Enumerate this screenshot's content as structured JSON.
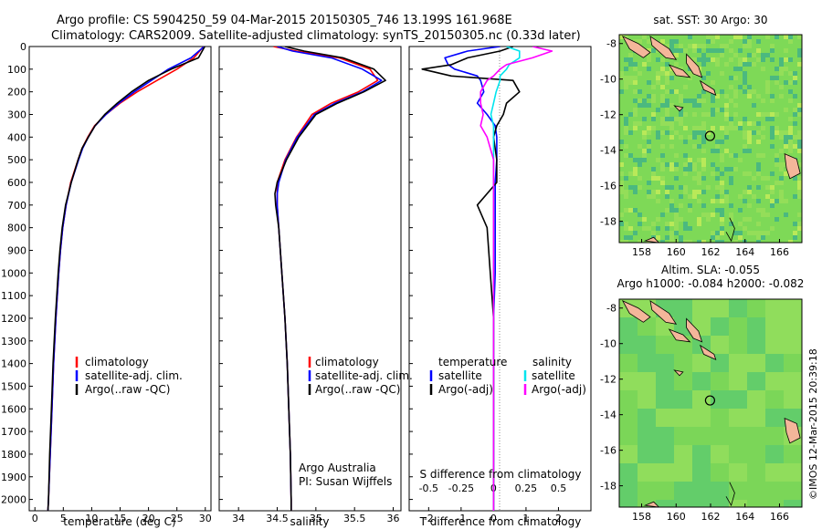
{
  "header": {
    "line1": "Argo profile: CS 5904250_59 04-Mar-2015 20150305_746 13.199S 161.968E",
    "line2": "Climatology: CARS2009. Satellite-adjusted climatology: synTS_20150305.nc (0.33d later)"
  },
  "colors": {
    "climatology": "#ff0000",
    "satellite": "#0000ff",
    "argo": "#000000",
    "sat_salinity": "#00e5ee",
    "argo_salinity": "#ff00ff",
    "map_green": "#7ed957",
    "land": "#f4b69a"
  },
  "chart_data": [
    {
      "type": "line",
      "name": "temperature-panel",
      "xlabel": "temperature (deg C)",
      "xlim": [
        -1,
        31
      ],
      "xticks": [
        "0",
        "5",
        "10",
        "15",
        "20",
        "25",
        "30"
      ],
      "ylim": [
        0,
        2050
      ],
      "yticks": [
        "0",
        "100",
        "200",
        "300",
        "400",
        "500",
        "600",
        "700",
        "800",
        "900",
        "1000",
        "1100",
        "1200",
        "1300",
        "1400",
        "1500",
        "1600",
        "1700",
        "1800",
        "1900",
        "2000"
      ],
      "legend": [
        "climatology",
        "satellite-adj. clim.",
        "Argo(..raw -QC)"
      ],
      "depth": [
        0,
        50,
        100,
        150,
        200,
        250,
        300,
        350,
        400,
        450,
        500,
        600,
        700,
        800,
        900,
        1000,
        1200,
        1400,
        1600,
        1800,
        2000,
        2050
      ],
      "series": [
        {
          "name": "climatology",
          "values": [
            29.7,
            28.0,
            25.0,
            21.5,
            18.0,
            15.0,
            12.5,
            10.5,
            9.3,
            8.3,
            7.6,
            6.3,
            5.5,
            4.9,
            4.5,
            4.2,
            3.7,
            3.3,
            3.0,
            2.7,
            2.4,
            2.3
          ]
        },
        {
          "name": "satellite-adj. clim.",
          "values": [
            29.8,
            27.5,
            23.5,
            20.5,
            17.5,
            14.8,
            12.5,
            10.6,
            9.4,
            8.4,
            7.7,
            6.4,
            5.5,
            4.9,
            4.5,
            4.2,
            3.7,
            3.3,
            3.0,
            2.7,
            2.4,
            2.3
          ]
        },
        {
          "name": "Argo(..raw -QC)",
          "values": [
            29.9,
            28.8,
            24.0,
            20.0,
            17.0,
            14.5,
            12.3,
            10.6,
            9.4,
            8.3,
            7.6,
            6.4,
            5.4,
            4.8,
            4.4,
            4.1,
            3.6,
            3.2,
            2.9,
            2.6,
            2.4,
            2.3
          ]
        }
      ]
    },
    {
      "type": "line",
      "name": "salinity-panel",
      "xlabel": "salinity",
      "xlim": [
        33.75,
        36.1
      ],
      "xticks": [
        "34",
        "34.5",
        "35",
        "35.5",
        "36"
      ],
      "ylim": [
        0,
        2050
      ],
      "legend": [
        "climatology",
        "satellite-adj. clim.",
        "Argo(..raw -QC)"
      ],
      "annotation": [
        "Argo Australia",
        "PI: Susan Wijffels"
      ],
      "depth": [
        0,
        20,
        50,
        100,
        150,
        200,
        250,
        300,
        400,
        500,
        600,
        650,
        700,
        800,
        900,
        1000,
        1200,
        1400,
        1600,
        1800,
        2000,
        2050
      ],
      "series": [
        {
          "name": "climatology",
          "values": [
            34.45,
            34.75,
            35.3,
            35.7,
            35.8,
            35.55,
            35.2,
            34.95,
            34.75,
            34.6,
            34.5,
            34.5,
            34.5,
            34.52,
            34.54,
            34.56,
            34.6,
            34.63,
            34.65,
            34.67,
            34.68,
            34.68
          ]
        },
        {
          "name": "satellite-adj. clim.",
          "values": [
            34.5,
            34.7,
            35.2,
            35.6,
            35.85,
            35.6,
            35.25,
            34.98,
            34.76,
            34.61,
            34.52,
            34.5,
            34.5,
            34.52,
            34.54,
            34.56,
            34.6,
            34.63,
            34.65,
            34.67,
            34.68,
            34.68
          ]
        },
        {
          "name": "Argo(..raw -QC)",
          "values": [
            34.6,
            34.85,
            35.35,
            35.75,
            35.9,
            35.62,
            35.28,
            35.0,
            34.78,
            34.62,
            34.5,
            34.47,
            34.48,
            34.52,
            34.54,
            34.56,
            34.6,
            34.63,
            34.65,
            34.67,
            34.68,
            34.68
          ]
        }
      ]
    },
    {
      "type": "line",
      "name": "difference-panel",
      "xlabel": "T difference from climatology",
      "xlabel2": "S difference from climatology",
      "xlim": [
        -2.6,
        3
      ],
      "xticks": [
        "-2",
        "-1",
        "0",
        "1",
        "2"
      ],
      "xticks_s": [
        "-0.5",
        "-0.25",
        "0",
        "0.25",
        "0.5"
      ],
      "ylim": [
        0,
        2050
      ],
      "legend": {
        "temperature_header": "temperature",
        "salinity_header": "salinity",
        "items": [
          "satellite",
          "Argo(-adj)",
          "satellite",
          "Argo(-adj)"
        ]
      },
      "depth": [
        0,
        20,
        50,
        80,
        100,
        130,
        150,
        200,
        250,
        300,
        350,
        400,
        500,
        600,
        700,
        800,
        1000,
        1200,
        1500,
        1800,
        2000,
        2050
      ],
      "series": [
        {
          "name": "T satellite",
          "values": [
            0.2,
            -0.8,
            -1.5,
            -1.4,
            -1.2,
            -0.5,
            -0.4,
            -0.3,
            -0.5,
            -0.2,
            0.05,
            0.1,
            0.1,
            0.05,
            0.05,
            0.05,
            0.05,
            0.0,
            0.0,
            0.0,
            0.0,
            0.0
          ]
        },
        {
          "name": "T Argo(-adj)",
          "values": [
            0.6,
            0.2,
            -0.8,
            -1.3,
            -2.2,
            -1.3,
            0.6,
            0.8,
            0.4,
            0.3,
            0.1,
            0.0,
            0.1,
            0.1,
            -0.5,
            -0.2,
            -0.1,
            0.0,
            0.0,
            0.0,
            0.0,
            0.0
          ]
        },
        {
          "name": "S satellite",
          "values": [
            0.1,
            0.2,
            0.2,
            0.12,
            0.1,
            0.05,
            0.05,
            0.02,
            0.0,
            -0.02,
            0.0,
            0.0,
            0.0,
            0.0,
            0.0,
            0.0,
            0.0,
            0.0,
            0.0,
            0.0,
            0.0,
            0.0
          ]
        },
        {
          "name": "S Argo(-adj)",
          "values": [
            0.3,
            0.45,
            0.3,
            0.1,
            0.05,
            0.0,
            -0.05,
            -0.1,
            -0.1,
            -0.08,
            -0.1,
            -0.05,
            0.0,
            0.0,
            0.0,
            0.0,
            0.0,
            0.0,
            0.0,
            0.0,
            0.0,
            0.0
          ]
        }
      ]
    },
    {
      "type": "heatmap",
      "name": "sst-map",
      "title": "sat. SST: 30 Argo: 30",
      "xticks": [
        "158",
        "160",
        "162",
        "164",
        "166"
      ],
      "yticks": [
        "-8",
        "-10",
        "-12",
        "-14",
        "-16",
        "-18"
      ],
      "xlim": [
        156.7,
        167.3
      ],
      "ylim": [
        -19.2,
        -7.5
      ],
      "profile": {
        "lon": 161.968,
        "lat": -13.199
      }
    },
    {
      "type": "heatmap",
      "name": "sla-map",
      "title1": "Altim. SLA: -0.055",
      "title2": "Argo h1000: -0.084 h2000: -0.082",
      "xticks": [
        "158",
        "160",
        "162",
        "164",
        "166"
      ],
      "yticks": [
        "-8",
        "-10",
        "-12",
        "-14",
        "-16",
        "-18"
      ],
      "xlim": [
        156.7,
        167.3
      ],
      "ylim": [
        -19.2,
        -7.5
      ],
      "profile": {
        "lon": 161.968,
        "lat": -13.199
      }
    }
  ],
  "footer": {
    "stamp": "©IMOS 12-Mar-2015 20:39:18"
  }
}
